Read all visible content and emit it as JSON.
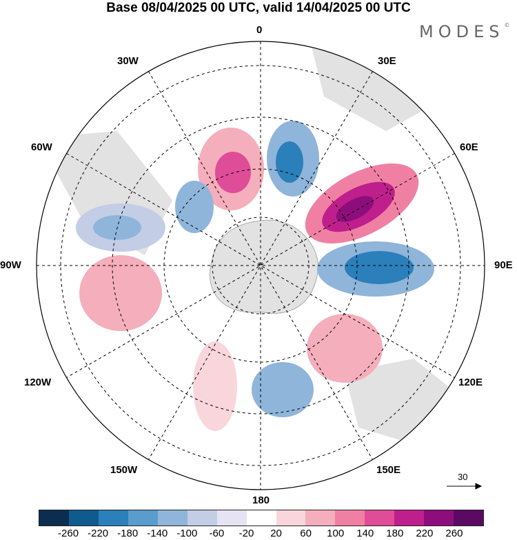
{
  "header": {
    "title": "Base 08/04/2025 00 UTC, valid 14/04/2025 00 UTC",
    "brand": "MODES"
  },
  "map": {
    "projection": "south-polar-stereographic",
    "longitude_labels": {
      "lon_0": "0",
      "lon_30e": "30E",
      "lon_60e": "60E",
      "lon_90e": "90E",
      "lon_120e": "120E",
      "lon_150e": "150E",
      "lon_180": "180",
      "lon_150w": "150W",
      "lon_120w": "120W",
      "lon_90w": "90W",
      "lon_60w": "60W",
      "lon_30w": "30W"
    },
    "vector_scale_label": "30"
  },
  "colorbar": {
    "tick_labels": [
      "-260",
      "-220",
      "-180",
      "-140",
      "-100",
      "-60",
      "-20",
      "20",
      "60",
      "100",
      "140",
      "180",
      "220",
      "260"
    ],
    "colors": [
      "#0b2d4f",
      "#0f5b8e",
      "#2b7fbb",
      "#5a9ccb",
      "#8fb5da",
      "#c3cde6",
      "#e6e4f2",
      "#ffffff",
      "#f9d6dc",
      "#f5aebb",
      "#ef80a4",
      "#df4c98",
      "#bf1f8c",
      "#8e0d7c",
      "#5a0a62"
    ]
  }
}
